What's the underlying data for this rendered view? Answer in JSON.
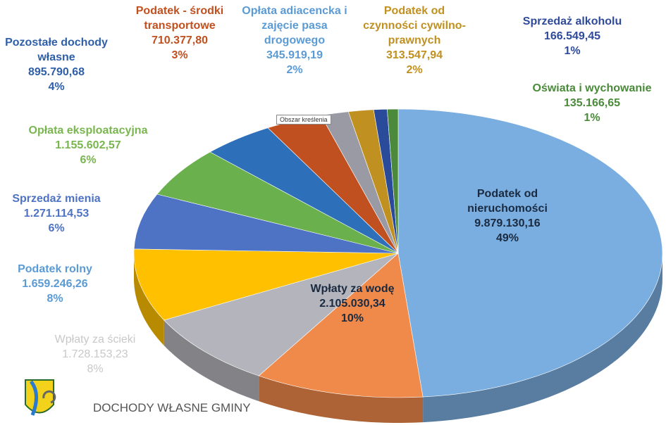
{
  "chart_data": {
    "type": "pie",
    "title": "DOCHODY WŁASNE GMINY",
    "tooltip": "Obszar kreślenia",
    "categories": [
      "Podatek od nieruchomości",
      "Wpłaty za wodę",
      "Wpłaty za ścieki",
      "Podatek rolny",
      "Sprzedaż mienia",
      "Opłata eksploatacyjna",
      "Pozostałe dochody własne",
      "Podatek - środki transportowe",
      "Opłata adiacencka i zajęcie pasa drogowego",
      "Podatek od czynności cywilno-prawnych",
      "Sprzedaż alkoholu",
      "Oświata i wychowanie"
    ],
    "values": [
      9879130.16,
      2105030.34,
      1728153.23,
      1659246.26,
      1271114.53,
      1155602.57,
      895790.68,
      710377.8,
      345919.19,
      313547.94,
      166549.45,
      135166.65
    ],
    "value_labels": [
      "9.879.130,16",
      "2.105.030,34",
      "1.728.153,23",
      "1.659.246,26",
      "1.271.114,53",
      "1.155.602,57",
      "895.790,68",
      "710.377,80",
      "345.919,19",
      "313.547,94",
      "166.549,45",
      "135.166,65"
    ],
    "percents": [
      49,
      10,
      8,
      8,
      6,
      6,
      4,
      3,
      2,
      2,
      1,
      1
    ],
    "percent_labels": [
      "49%",
      "10%",
      "8%",
      "8%",
      "6%",
      "6%",
      "4%",
      "3%",
      "2%",
      "2%",
      "1%",
      "1%"
    ],
    "colors": [
      "#7aaee0",
      "#f08a4b",
      "#b4b4bc",
      "#ffc000",
      "#4e72c4",
      "#6ab04c",
      "#2e6fba",
      "#c0501f",
      "#9a9aa4",
      "#c09020",
      "#2a4a9a",
      "#4a8a3a"
    ]
  }
}
